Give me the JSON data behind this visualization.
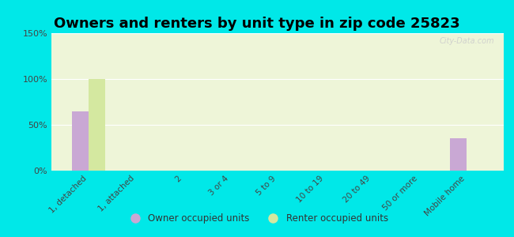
{
  "title": "Owners and renters by unit type in zip code 25823",
  "categories": [
    "1, detached",
    "1, attached",
    "2",
    "3 or 4",
    "5 to 9",
    "10 to 19",
    "20 to 49",
    "50 or more",
    "Mobile home"
  ],
  "owner_values": [
    65,
    0,
    0,
    0,
    0,
    0,
    0,
    0,
    35
  ],
  "renter_values": [
    100,
    0,
    0,
    0,
    0,
    0,
    0,
    0,
    0
  ],
  "owner_color": "#c9a8d4",
  "renter_color": "#d4e8a0",
  "background_outer": "#00e8e8",
  "background_plot": "#eef5d8",
  "ylim": [
    0,
    150
  ],
  "yticks": [
    0,
    50,
    100,
    150
  ],
  "ytick_labels": [
    "0%",
    "50%",
    "100%",
    "150%"
  ],
  "owner_label": "Owner occupied units",
  "renter_label": "Renter occupied units",
  "title_fontsize": 13,
  "watermark": "City-Data.com"
}
